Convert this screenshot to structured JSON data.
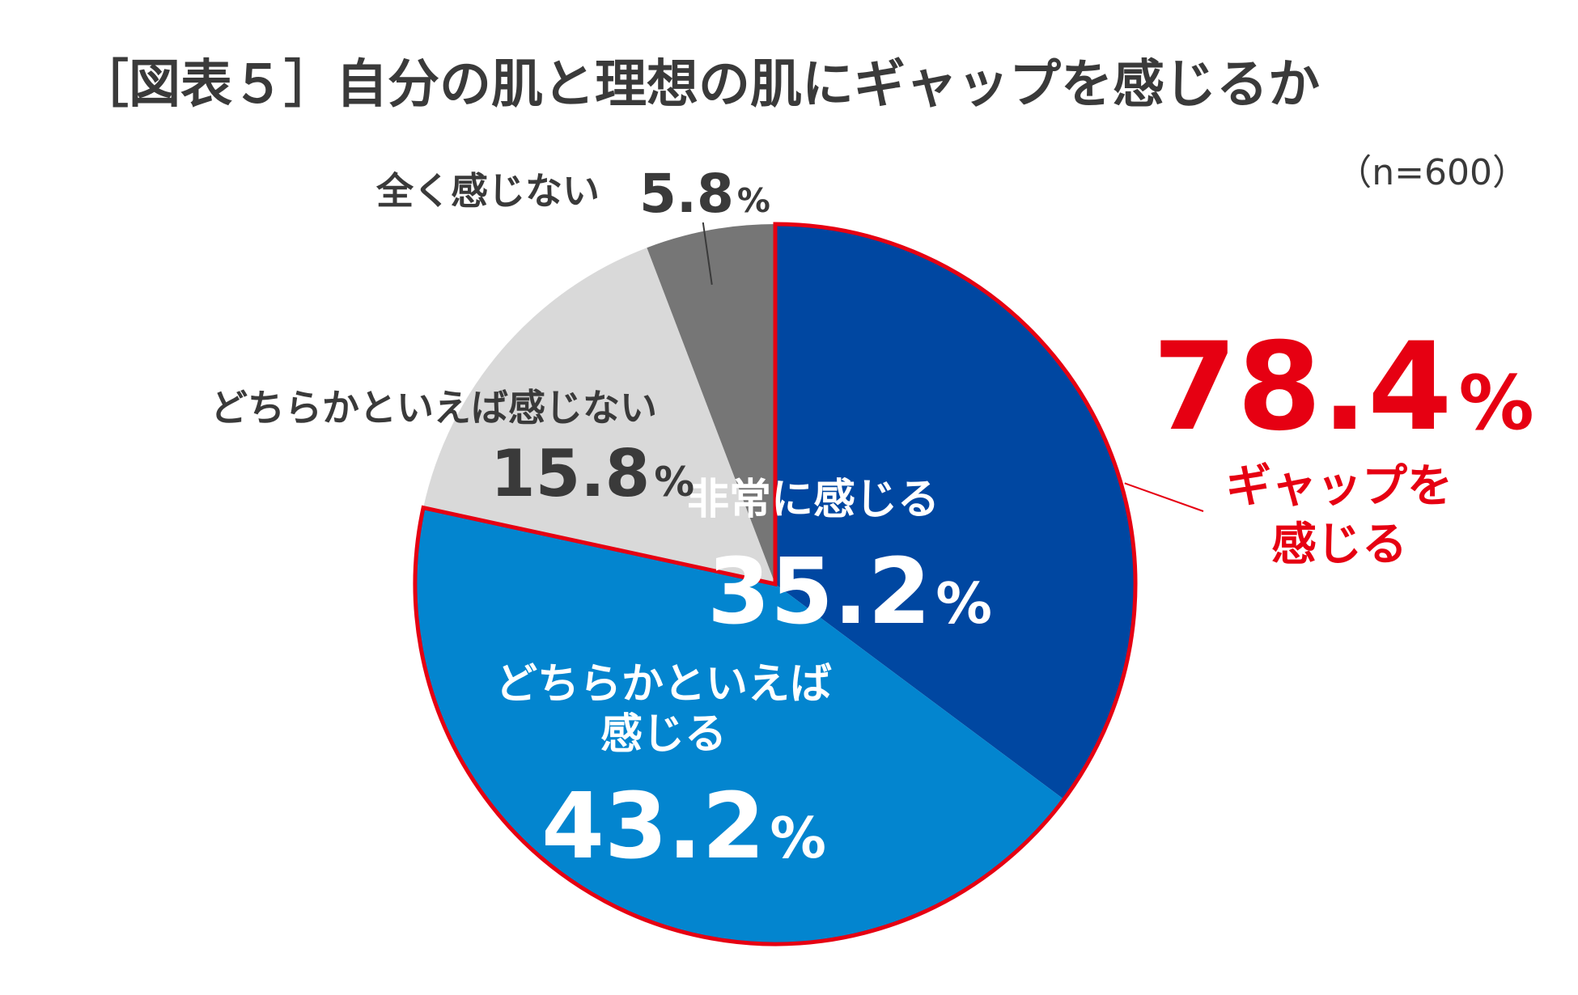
{
  "title": "［図表５］自分の肌と理想の肌にギャップを感じるか",
  "sample_size": "（n=600）",
  "total_callout": {
    "value": "78.4",
    "unit": "%",
    "label_line1": "ギャップを",
    "label_line2": "感じる"
  },
  "colors": {
    "very": "#0047a1",
    "somewhat": "#0385cf",
    "somewhat_not": "#d9d9d9",
    "not_at_all": "#767676",
    "highlight": "#e60012",
    "text_dark": "#3a3a3a"
  },
  "chart_data": {
    "type": "pie",
    "title": "［図表５］自分の肌と理想の肌にギャップを感じるか",
    "start": "12 o'clock, clockwise",
    "categories": [
      "非常に感じる",
      "どちらかといえば感じる",
      "どちらかといえば感じない",
      "全く感じない"
    ],
    "values": [
      35.2,
      43.2,
      15.8,
      5.8
    ],
    "unit": "%",
    "highlighted_group": {
      "members": [
        "非常に感じる",
        "どちらかといえば感じる"
      ],
      "label": "ギャップを感じる",
      "value": 78.4
    }
  },
  "labels": {
    "very": {
      "line1": "非常に感じる",
      "value": "35.2",
      "unit": "%"
    },
    "somewhat": {
      "line1": "どちらかといえば",
      "line2": "感じる",
      "value": "43.2",
      "unit": "%"
    },
    "somewhat_not": {
      "line1": "どちらかといえば感じない",
      "value": "15.8",
      "unit": "%"
    },
    "not_at_all": {
      "line1": "全く感じない",
      "value": "5.8",
      "unit": "%"
    }
  }
}
